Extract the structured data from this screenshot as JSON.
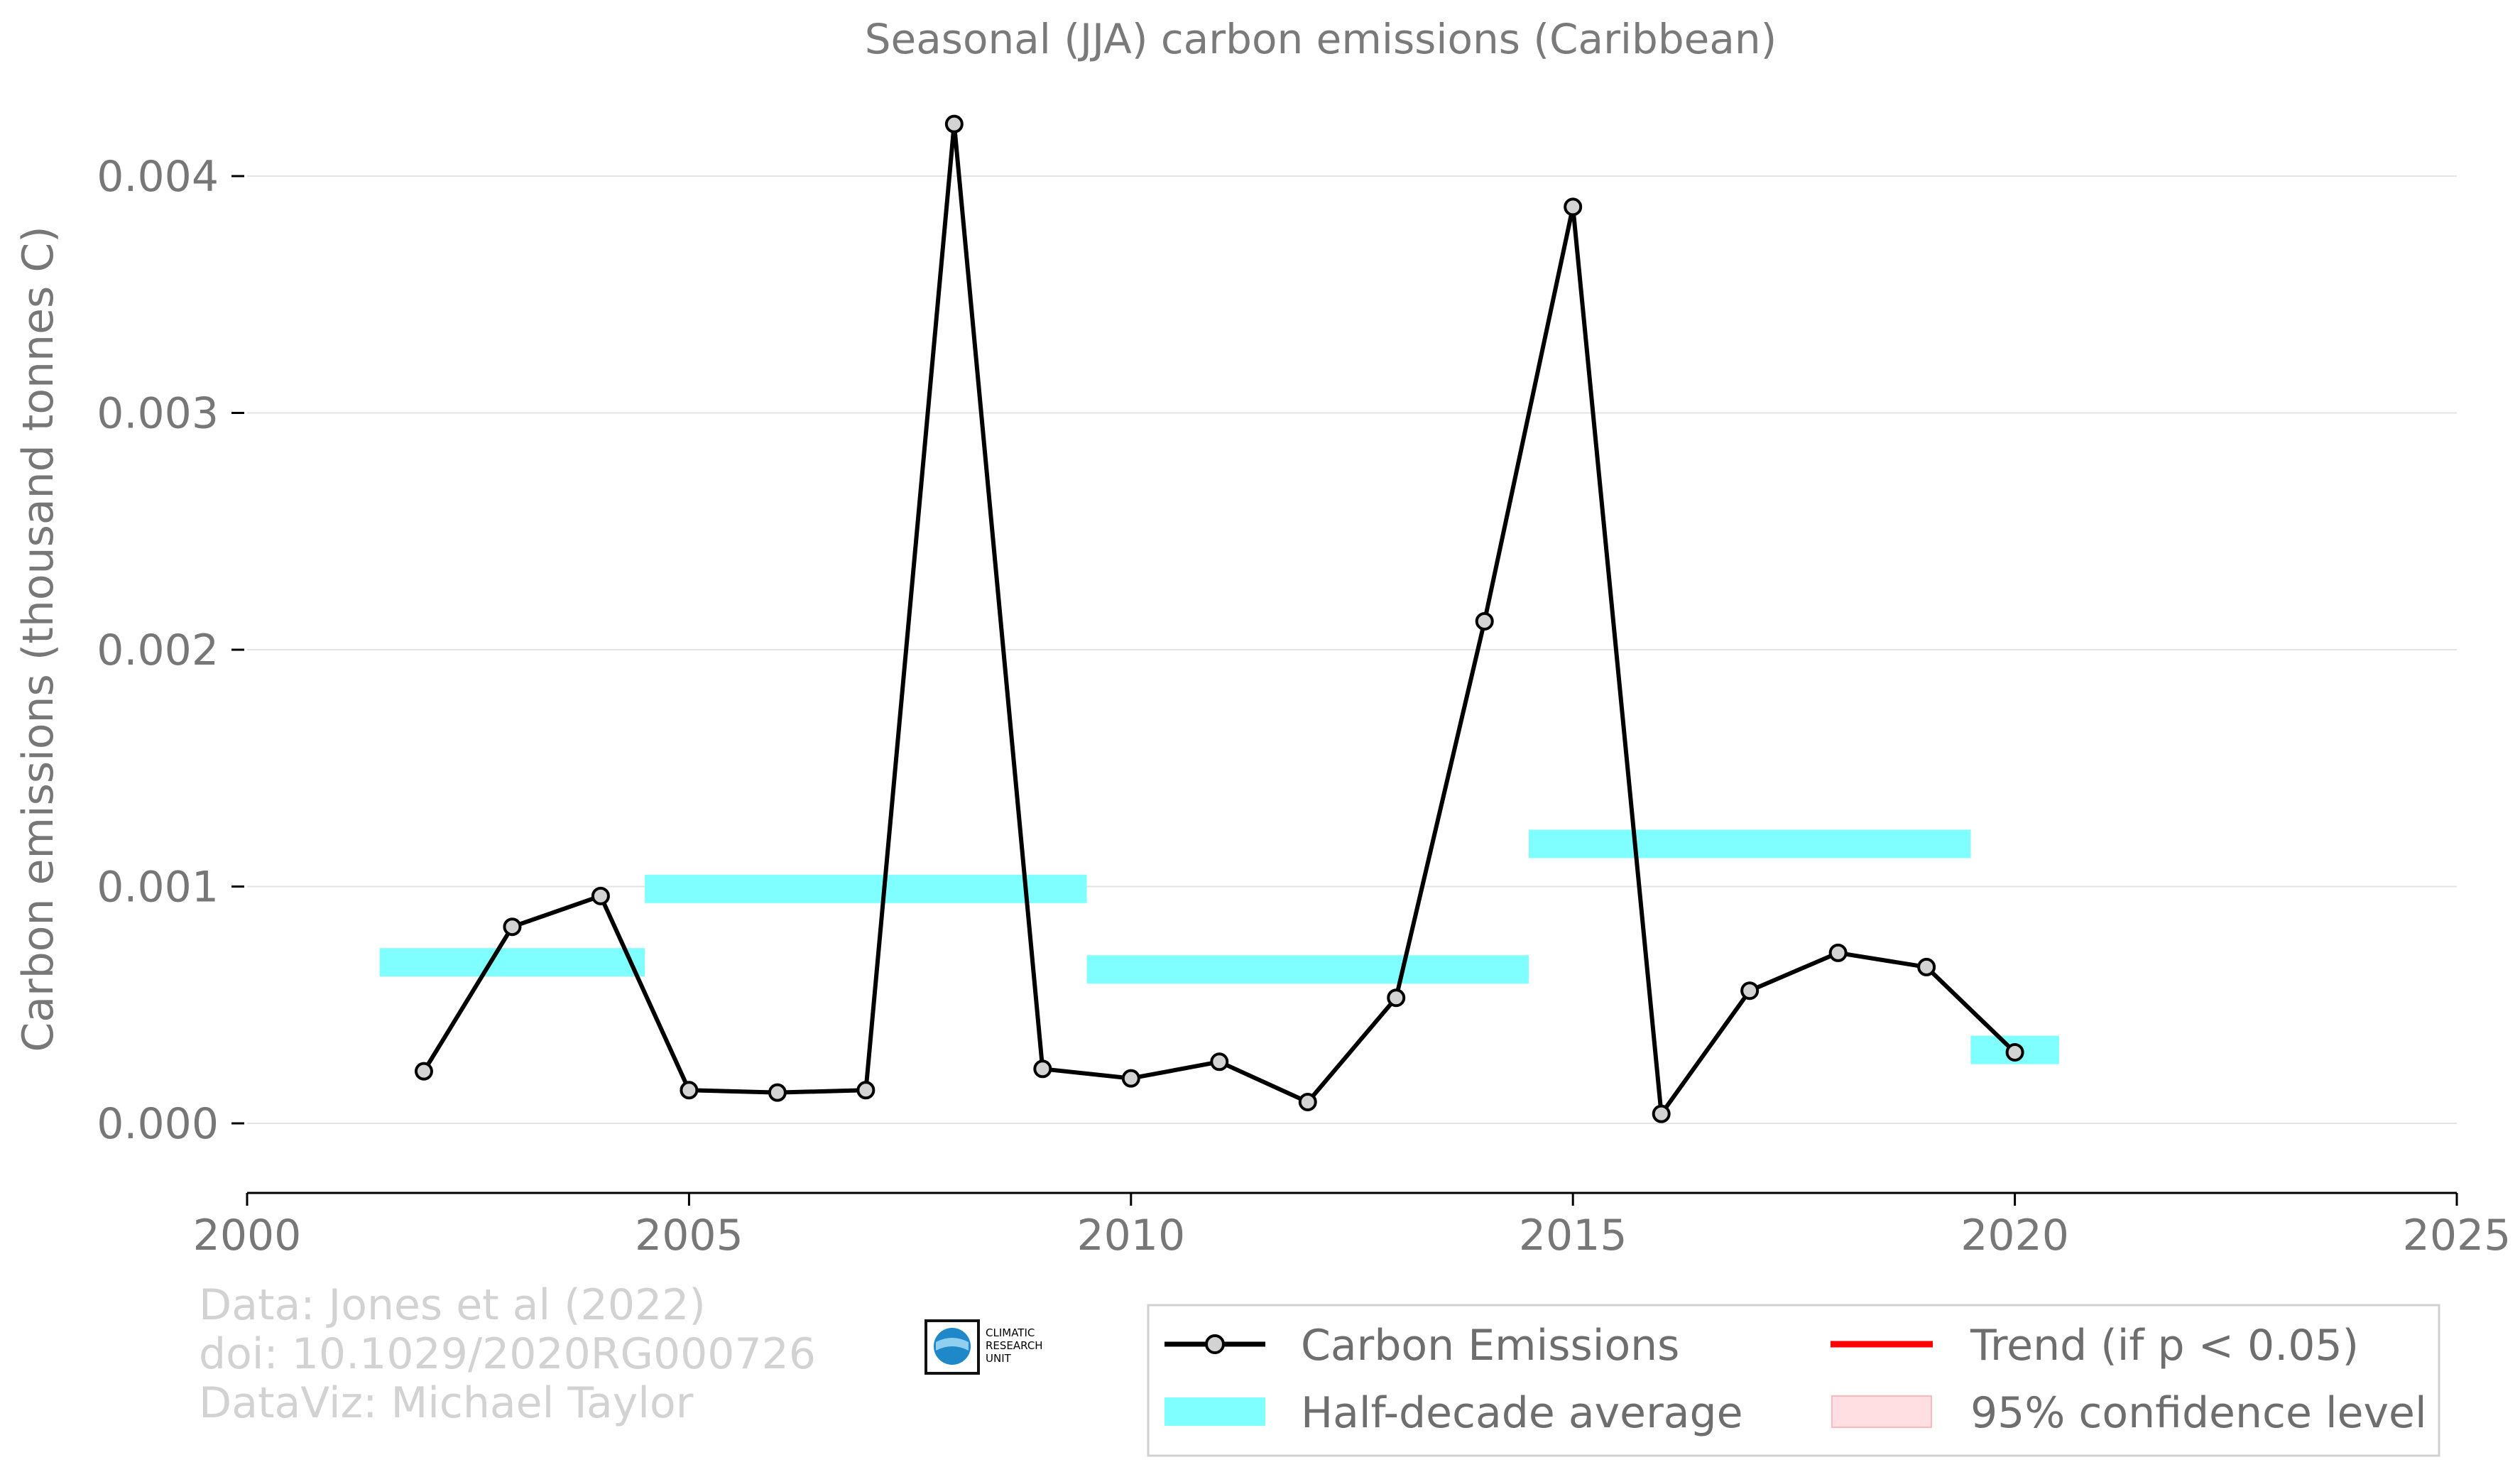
{
  "chart_data": {
    "type": "line",
    "title": "Seasonal (JJA) carbon emissions (Caribbean)",
    "xlabel": "",
    "ylabel": "Carbon emissions (thousand tonnes C)",
    "xlim": [
      2000,
      2025
    ],
    "ylim": [
      -0.00025,
      0.0042
    ],
    "x_ticks": [
      2000,
      2005,
      2010,
      2015,
      2020,
      2025
    ],
    "y_ticks": [
      0.0,
      0.001,
      0.002,
      0.003,
      0.004
    ],
    "y_tick_labels": [
      "0.000",
      "0.001",
      "0.002",
      "0.003",
      "0.004"
    ],
    "grid": "horizontal",
    "series": [
      {
        "name": "Carbon Emissions",
        "color": "#000000",
        "marker_fill": "#d3d3d3",
        "x": [
          2002,
          2003,
          2004,
          2005,
          2006,
          2007,
          2008,
          2009,
          2010,
          2011,
          2012,
          2013,
          2014,
          2015,
          2016,
          2017,
          2018,
          2019,
          2020
        ],
        "y": [
          0.00022,
          0.00083,
          0.00096,
          0.00014,
          0.00013,
          0.00014,
          0.00422,
          0.00023,
          0.00019,
          0.00026,
          9e-05,
          0.00053,
          0.00212,
          0.00387,
          4e-05,
          0.00056,
          0.00072,
          0.00066,
          0.0003
        ]
      }
    ],
    "half_decade_averages": [
      {
        "x_start": 2001.5,
        "x_end": 2004.5,
        "value": 0.00068
      },
      {
        "x_start": 2004.5,
        "x_end": 2009.5,
        "value": 0.00099
      },
      {
        "x_start": 2009.5,
        "x_end": 2014.5,
        "value": 0.00065
      },
      {
        "x_start": 2014.5,
        "x_end": 2019.5,
        "value": 0.00118
      },
      {
        "x_start": 2019.5,
        "x_end": 2020.5,
        "value": 0.00031
      }
    ],
    "legend": {
      "position": "bottom-right",
      "entries": [
        {
          "label": "Carbon Emissions",
          "kind": "line-marker",
          "color": "#000000"
        },
        {
          "label": "Trend (if p < 0.05)",
          "kind": "line",
          "color": "#ff0000"
        },
        {
          "label": "Half-decade average",
          "kind": "band",
          "color": "#7fffff"
        },
        {
          "label": "95% confidence level",
          "kind": "band",
          "color": "#ffdfe1"
        }
      ]
    },
    "band_color": "#7fffff"
  },
  "credits": {
    "line1": "Data: Jones et al (2022)",
    "line2": "doi: 10.1029/2020RG000726",
    "line3": "DataViz: Michael Taylor"
  },
  "logo": {
    "line1": "CLIMATIC",
    "line2": "RESEARCH",
    "line3": "UNIT"
  }
}
